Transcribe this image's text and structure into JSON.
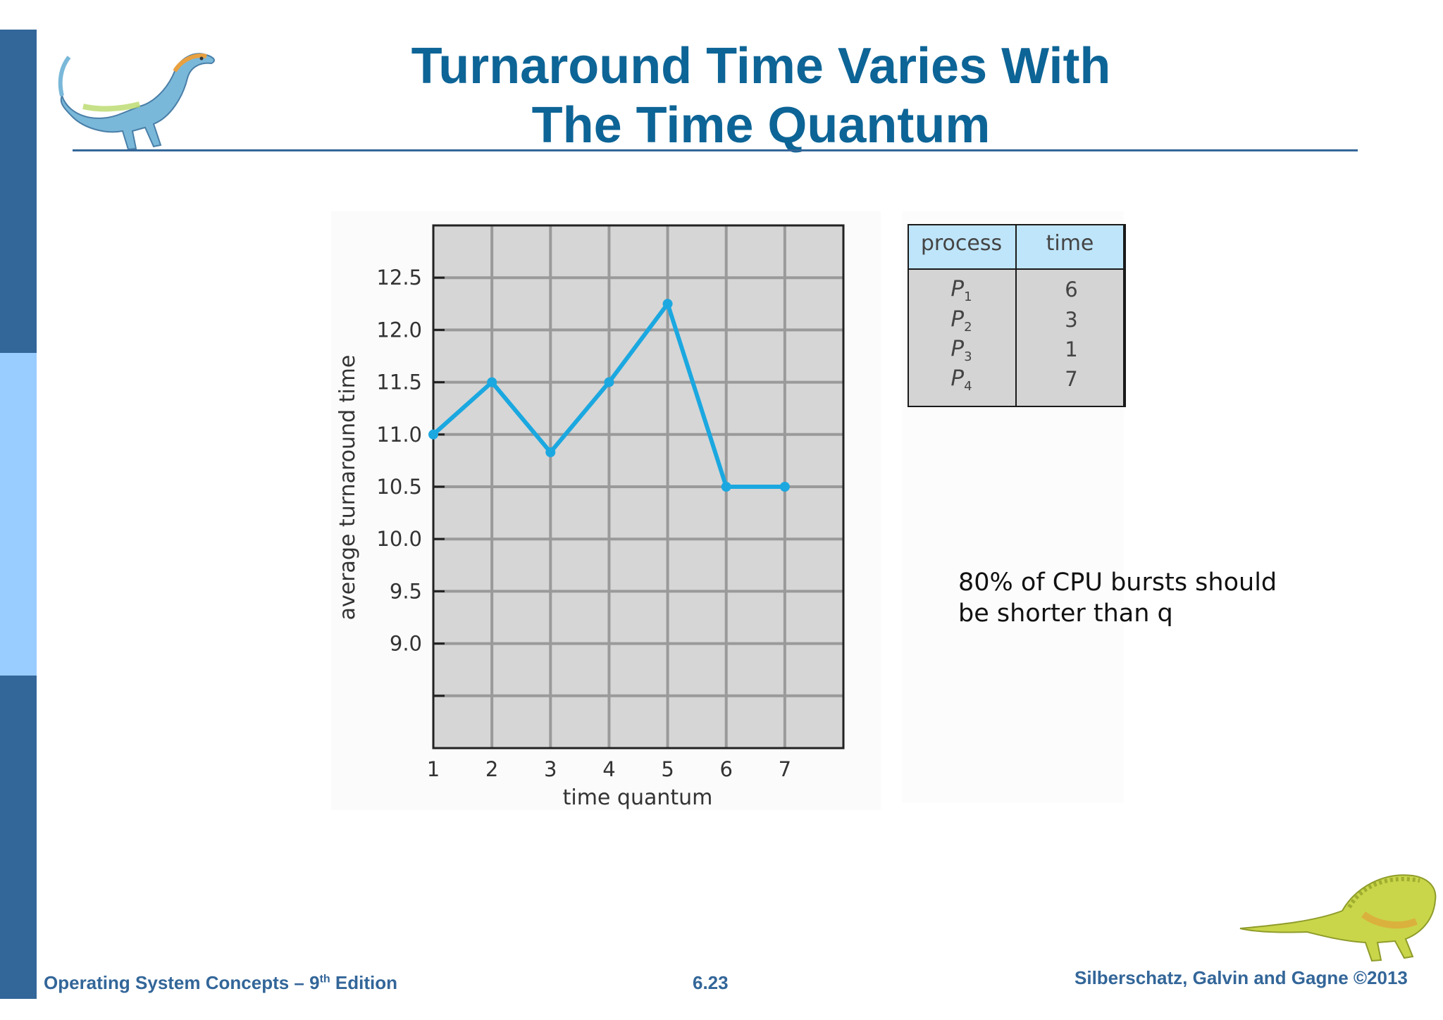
{
  "slide": {
    "title_line1": "Turnaround Time Varies With",
    "title_line2": "The Time Quantum",
    "note": "80% of CPU bursts should\nbe shorter than q",
    "colors": {
      "title": "#0d6496",
      "sidebar_dark": "#336699",
      "sidebar_light": "#99ccff",
      "series": "#1ba8e0"
    }
  },
  "footer": {
    "left_prefix": "Operating System Concepts – 9",
    "left_sup": "th",
    "left_suffix": " Edition",
    "center": "6.23",
    "right": "Silberschatz, Galvin and Gagne ©2013"
  },
  "table": {
    "headers": [
      "process",
      "time"
    ],
    "rows": [
      {
        "name": "P",
        "sub": "1",
        "time": "6"
      },
      {
        "name": "P",
        "sub": "2",
        "time": "3"
      },
      {
        "name": "P",
        "sub": "3",
        "time": "1"
      },
      {
        "name": "P",
        "sub": "4",
        "time": "7"
      }
    ]
  },
  "chart_data": {
    "type": "line",
    "title": "",
    "xlabel": "time quantum",
    "ylabel": "average turnaround time",
    "x": [
      1,
      2,
      3,
      4,
      5,
      6,
      7
    ],
    "series": [
      {
        "values": [
          11.0,
          11.5,
          10.83,
          11.5,
          12.25,
          10.5,
          10.5
        ]
      }
    ],
    "x_ticks": [
      "1",
      "2",
      "3",
      "4",
      "5",
      "6",
      "7"
    ],
    "y_ticks": [
      "9.0",
      "9.5",
      "10.0",
      "10.5",
      "11.0",
      "11.5",
      "12.0",
      "12.5"
    ],
    "ylim": [
      8.0,
      13.0
    ],
    "xlim": [
      1,
      8
    ],
    "grid": true,
    "legend": "none"
  }
}
